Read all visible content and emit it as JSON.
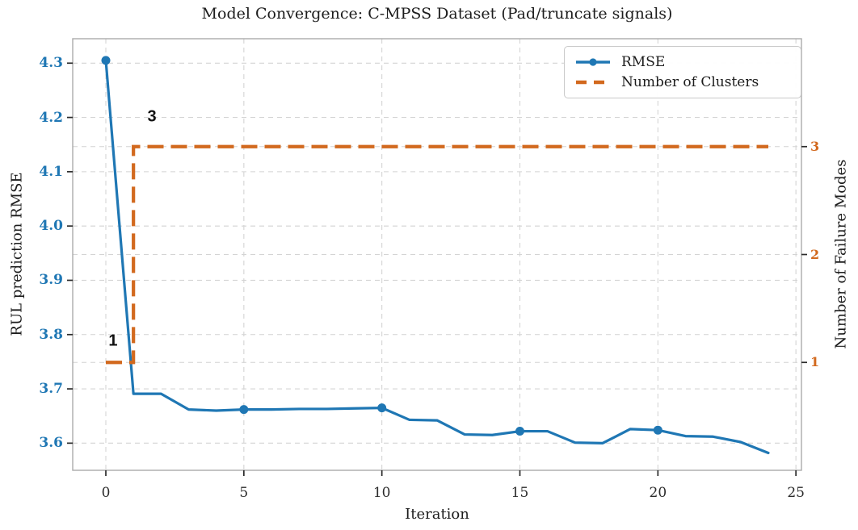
{
  "figure": {
    "title": "Model Convergence: C-MPSS Dataset (Pad/truncate signals)"
  },
  "chart_data": {
    "type": "line",
    "title": "Model Convergence: C-MPSS Dataset (Pad/truncate signals)",
    "xlabel": "Iteration",
    "ylabel_left": "RUL prediction RMSE",
    "ylabel_right": "Number of Failure Modes",
    "grid": true,
    "legend_position": "upper right",
    "x": [
      0,
      1,
      2,
      3,
      4,
      5,
      6,
      7,
      8,
      9,
      10,
      11,
      12,
      13,
      14,
      15,
      16,
      17,
      18,
      19,
      20,
      21,
      22,
      23,
      24
    ],
    "series": [
      {
        "name": "RMSE",
        "axis": "left",
        "color": "#1f77b4",
        "linestyle": "solid",
        "marker": "o",
        "marker_every": 5,
        "values": [
          4.305,
          3.691,
          3.691,
          3.662,
          3.66,
          3.662,
          3.662,
          3.663,
          3.663,
          3.664,
          3.665,
          3.643,
          3.642,
          3.616,
          3.615,
          3.622,
          3.622,
          3.601,
          3.6,
          3.626,
          3.624,
          3.613,
          3.612,
          3.602,
          3.582
        ]
      },
      {
        "name": "Number of Clusters",
        "axis": "right",
        "color": "#d2691e",
        "linestyle": "dashed",
        "drawstyle": "steps-post",
        "values": [
          1,
          3,
          3,
          3,
          3,
          3,
          3,
          3,
          3,
          3,
          3,
          3,
          3,
          3,
          3,
          3,
          3,
          3,
          3,
          3,
          3,
          3,
          3,
          3,
          3
        ]
      }
    ],
    "x_ticks": [
      0,
      5,
      10,
      15,
      20,
      25
    ],
    "x_tick_labels": [
      "0",
      "5",
      "10",
      "15",
      "20",
      "25"
    ],
    "y_left_ticks": [
      3.6,
      3.7,
      3.8,
      3.9,
      4.0,
      4.1,
      4.2,
      4.3
    ],
    "y_left_tick_labels": [
      "3.6",
      "3.7",
      "3.8",
      "3.9",
      "4.0",
      "4.1",
      "4.2",
      "4.3"
    ],
    "y_right_ticks": [
      1,
      2,
      3
    ],
    "y_right_tick_labels": [
      "1",
      "2",
      "3"
    ],
    "xlim": [
      -1.2,
      25.2
    ],
    "ylim_left": [
      3.55,
      4.345
    ],
    "ylim_right": [
      0,
      4
    ],
    "annotations": [
      {
        "text": "3",
        "x": 1.67,
        "y": 3.275,
        "axis": "right"
      },
      {
        "text": "1",
        "x": 0.26,
        "y": 1.2,
        "axis": "right"
      }
    ],
    "legend": [
      {
        "label": "RMSE",
        "color": "#1f77b4",
        "style": "solid-marker"
      },
      {
        "label": "Number of Clusters",
        "color": "#d2691e",
        "style": "dashed"
      }
    ]
  }
}
